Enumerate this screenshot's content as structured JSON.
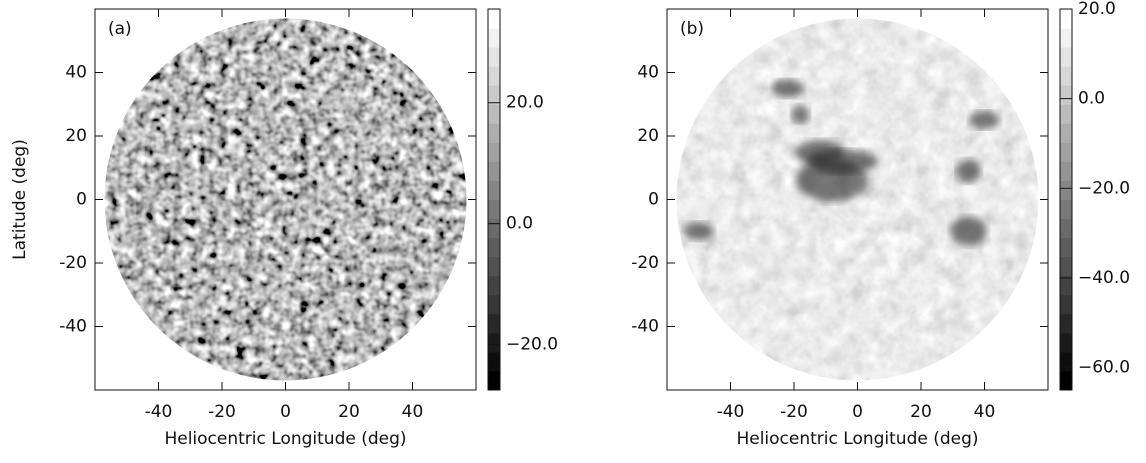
{
  "chart_data": [
    {
      "type": "image",
      "panel_label": "(a)",
      "xlabel": "Heliocentric Longitude (deg)",
      "ylabel": "Latitude (deg)",
      "xlim": [
        -60,
        60
      ],
      "ylim": [
        -60,
        60
      ],
      "xticks": [
        -40,
        -20,
        0,
        20,
        40
      ],
      "yticks": [
        -40,
        -20,
        0,
        20,
        40
      ],
      "colorbar": {
        "lim": [
          -27.5,
          35.5
        ],
        "ticks": [
          {
            "value": -20,
            "label": "−20.0"
          },
          {
            "value": 0,
            "label": "0.0"
          },
          {
            "value": 20,
            "label": "20.0"
          }
        ]
      }
    },
    {
      "type": "image",
      "panel_label": "(b)",
      "xlabel": "Heliocentric Longitude (deg)",
      "xlim": [
        -60,
        60
      ],
      "ylim": [
        -60,
        60
      ],
      "xticks": [
        -40,
        -20,
        0,
        20,
        40
      ],
      "yticks": [
        -40,
        -20,
        0,
        20,
        40
      ],
      "colorbar": {
        "lim": [
          -65,
          20
        ],
        "ticks": [
          {
            "value": -60,
            "label": "−60.0"
          },
          {
            "value": -40,
            "label": "−40.0"
          },
          {
            "value": -20,
            "label": "−20.0"
          },
          {
            "value": 0,
            "label": "0.0"
          },
          {
            "value": 20,
            "label": "20.0"
          }
        ]
      }
    }
  ]
}
